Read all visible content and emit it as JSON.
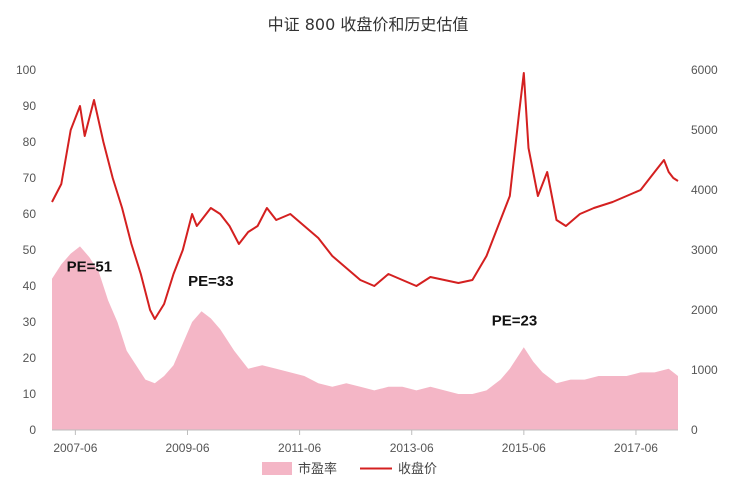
{
  "chart_data": {
    "type": "line",
    "title": "中证 800 收盘价和历史估值",
    "x_tick_labels": [
      "2007-06",
      "2009-06",
      "2011-06",
      "2013-06",
      "2015-06",
      "2017-06"
    ],
    "left_axis": {
      "ylim": [
        0,
        100
      ],
      "ticks": [
        "0",
        "10",
        "20",
        "30",
        "40",
        "50",
        "60",
        "70",
        "80",
        "90",
        "100"
      ]
    },
    "right_axis": {
      "ylim": [
        0,
        6000
      ],
      "ticks": [
        "0",
        "1000",
        "2000",
        "3000",
        "4000",
        "5000",
        "6000"
      ]
    },
    "grid": false,
    "legend_position": "bottom",
    "series": [
      {
        "name": "市盈率",
        "type": "area",
        "axis": "left",
        "color": "#f4b6c6",
        "x": [
          "2007-01",
          "2007-03",
          "2007-05",
          "2007-07",
          "2007-09",
          "2007-11",
          "2008-01",
          "2008-03",
          "2008-05",
          "2008-07",
          "2008-09",
          "2008-11",
          "2009-01",
          "2009-03",
          "2009-05",
          "2009-07",
          "2009-09",
          "2009-11",
          "2010-01",
          "2010-04",
          "2010-07",
          "2010-10",
          "2011-01",
          "2011-04",
          "2011-07",
          "2011-10",
          "2012-01",
          "2012-04",
          "2012-07",
          "2012-10",
          "2013-01",
          "2013-04",
          "2013-07",
          "2013-10",
          "2014-01",
          "2014-04",
          "2014-07",
          "2014-10",
          "2015-01",
          "2015-03",
          "2015-05",
          "2015-06",
          "2015-08",
          "2015-10",
          "2016-01",
          "2016-04",
          "2016-07",
          "2016-10",
          "2017-01",
          "2017-04",
          "2017-07",
          "2017-10",
          "2018-01",
          "2018-03"
        ],
        "values": [
          42,
          46,
          49,
          51,
          48,
          44,
          36,
          30,
          22,
          18,
          14,
          13,
          15,
          18,
          24,
          30,
          33,
          31,
          28,
          22,
          17,
          18,
          17,
          16,
          15,
          13,
          12,
          13,
          12,
          11,
          12,
          12,
          11,
          12,
          11,
          10,
          10,
          11,
          14,
          17,
          21,
          23,
          19,
          16,
          13,
          14,
          14,
          15,
          15,
          15,
          16,
          16,
          17,
          15
        ]
      },
      {
        "name": "收盘价",
        "type": "line",
        "axis": "right",
        "color": "#d42020",
        "x": [
          "2007-01",
          "2007-03",
          "2007-05",
          "2007-07",
          "2007-08",
          "2007-10",
          "2007-12",
          "2008-02",
          "2008-04",
          "2008-06",
          "2008-08",
          "2008-10",
          "2008-11",
          "2009-01",
          "2009-03",
          "2009-05",
          "2009-07",
          "2009-08",
          "2009-09",
          "2009-11",
          "2010-01",
          "2010-03",
          "2010-05",
          "2010-07",
          "2010-09",
          "2010-11",
          "2011-01",
          "2011-04",
          "2011-07",
          "2011-10",
          "2012-01",
          "2012-04",
          "2012-07",
          "2012-10",
          "2013-01",
          "2013-04",
          "2013-07",
          "2013-10",
          "2014-01",
          "2014-04",
          "2014-07",
          "2014-10",
          "2014-12",
          "2015-03",
          "2015-05",
          "2015-06",
          "2015-07",
          "2015-09",
          "2015-11",
          "2016-01",
          "2016-03",
          "2016-06",
          "2016-09",
          "2017-01",
          "2017-04",
          "2017-07",
          "2017-10",
          "2017-12",
          "2018-01",
          "2018-02",
          "2018-03"
        ],
        "values": [
          3800,
          4100,
          5000,
          5400,
          4900,
          5500,
          4800,
          4200,
          3700,
          3100,
          2600,
          2000,
          1850,
          2100,
          2600,
          3000,
          3600,
          3400,
          3500,
          3700,
          3600,
          3400,
          3100,
          3300,
          3400,
          3700,
          3500,
          3600,
          3400,
          3200,
          2900,
          2700,
          2500,
          2400,
          2600,
          2500,
          2400,
          2550,
          2500,
          2450,
          2500,
          2900,
          3300,
          3900,
          5300,
          5950,
          4700,
          3900,
          4300,
          3500,
          3400,
          3600,
          3700,
          3800,
          3900,
          4000,
          4300,
          4500,
          4300,
          4200,
          4150
        ]
      }
    ],
    "annotations": [
      {
        "text": "PE=51",
        "x": "2007-09",
        "y": 44
      },
      {
        "text": "PE=33",
        "x": "2009-11",
        "y": 40
      },
      {
        "text": "PE=23",
        "x": "2015-04",
        "y": 29
      }
    ]
  }
}
